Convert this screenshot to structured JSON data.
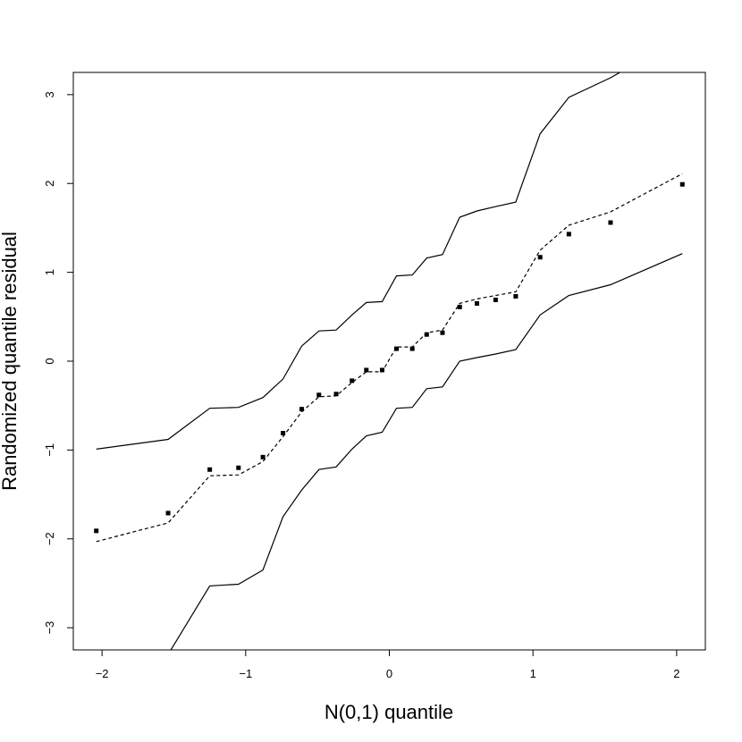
{
  "chart_data": {
    "type": "scatter",
    "title": "",
    "xlabel": "N(0,1) quantile",
    "ylabel": "Randomized quantile residual",
    "xlim": [
      -2.2,
      2.2
    ],
    "ylim": [
      -3.25,
      3.25
    ],
    "x_ticks": [
      -2,
      -1,
      0,
      1,
      2
    ],
    "x_tick_labels": [
      "−2",
      "−1",
      "0",
      "1",
      "2"
    ],
    "y_ticks": [
      -3,
      -2,
      -1,
      0,
      1,
      2,
      3
    ],
    "y_tick_labels": [
      "−3",
      "−2",
      "−1",
      "0",
      "1",
      "2",
      "3"
    ],
    "grid": false,
    "legend": "none",
    "points": {
      "x": [
        -2.04,
        -1.54,
        -1.25,
        -1.05,
        -0.88,
        -0.74,
        -0.61,
        -0.49,
        -0.37,
        -0.26,
        -0.16,
        -0.05,
        0.05,
        0.16,
        0.26,
        0.37,
        0.49,
        0.61,
        0.74,
        0.88,
        1.05,
        1.25,
        1.54,
        2.04
      ],
      "y": [
        -1.91,
        -1.71,
        -1.22,
        -1.2,
        -1.08,
        -0.81,
        -0.54,
        -0.38,
        -0.37,
        -0.22,
        -0.1,
        -0.1,
        0.14,
        0.14,
        0.3,
        0.32,
        0.61,
        0.65,
        0.69,
        0.73,
        1.17,
        1.43,
        1.56,
        1.99
      ]
    },
    "series": [
      {
        "style": "dashed",
        "x": [
          -2.04,
          -1.54,
          -1.25,
          -1.05,
          -0.88,
          -0.74,
          -0.61,
          -0.49,
          -0.37,
          -0.26,
          -0.16,
          -0.05,
          0.05,
          0.16,
          0.26,
          0.37,
          0.49,
          0.61,
          0.74,
          0.88,
          1.05,
          1.25,
          1.54,
          2.04
        ],
        "y": [
          -2.03,
          -1.82,
          -1.29,
          -1.28,
          -1.13,
          -0.85,
          -0.57,
          -0.4,
          -0.39,
          -0.24,
          -0.12,
          -0.12,
          0.16,
          0.16,
          0.32,
          0.35,
          0.65,
          0.7,
          0.74,
          0.78,
          1.25,
          1.53,
          1.68,
          2.11
        ]
      },
      {
        "style": "solid",
        "x": [
          -2.04,
          -1.54,
          -1.25,
          -1.05,
          -0.88,
          -0.74,
          -0.61,
          -0.49,
          -0.37,
          -0.26,
          -0.16,
          -0.05,
          0.05,
          0.16,
          0.26,
          0.37,
          0.49,
          0.61,
          0.74,
          0.88,
          1.05,
          1.25,
          1.54,
          2.04
        ],
        "y": [
          -0.99,
          -0.88,
          -0.53,
          -0.52,
          -0.41,
          -0.2,
          0.17,
          0.34,
          0.35,
          0.52,
          0.66,
          0.67,
          0.96,
          0.97,
          1.16,
          1.2,
          1.62,
          1.69,
          1.74,
          1.79,
          2.56,
          2.97,
          3.19,
          3.65
        ]
      },
      {
        "style": "solid",
        "x": [
          -2.04,
          -1.54,
          -1.25,
          -1.05,
          -0.88,
          -0.74,
          -0.61,
          -0.49,
          -0.37,
          -0.26,
          -0.16,
          -0.05,
          0.05,
          0.16,
          0.26,
          0.37,
          0.49,
          0.61,
          0.74,
          0.88,
          1.05,
          1.25,
          1.54,
          2.04
        ],
        "y": [
          -3.6,
          -3.3,
          -2.53,
          -2.51,
          -2.35,
          -1.75,
          -1.45,
          -1.22,
          -1.19,
          -0.99,
          -0.84,
          -0.8,
          -0.53,
          -0.52,
          -0.31,
          -0.29,
          0.0,
          0.04,
          0.08,
          0.13,
          0.52,
          0.74,
          0.86,
          1.21
        ]
      }
    ]
  }
}
